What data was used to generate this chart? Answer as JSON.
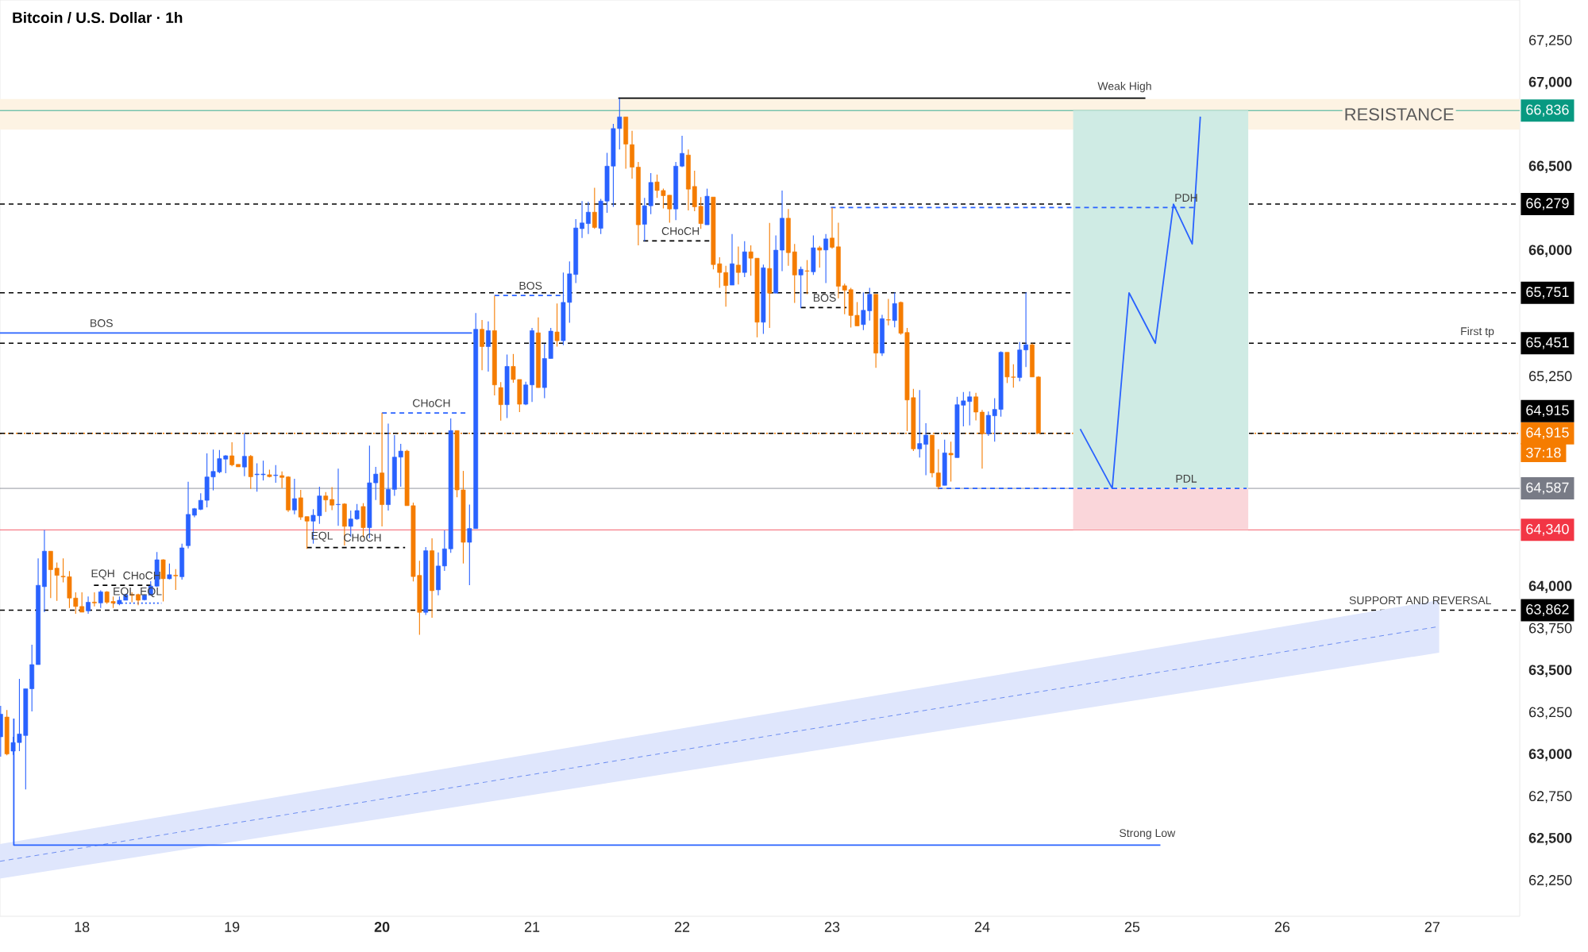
{
  "chart_data": {
    "type": "candlestick",
    "title": "Bitcoin / U.S. Dollar · 1h",
    "x": [
      17.4583,
      17.5,
      17.5417,
      17.5833,
      17.625,
      17.6667,
      17.7083,
      17.75,
      17.7917,
      17.8333,
      17.875,
      17.9167,
      17.9583,
      18,
      18.0417,
      18.0833,
      18.125,
      18.1667,
      18.2083,
      18.25,
      18.2917,
      18.3333,
      18.375,
      18.4167,
      18.4583,
      18.5,
      18.5417,
      18.5833,
      18.625,
      18.6667,
      18.7083,
      18.75,
      18.7917,
      18.8333,
      18.875,
      18.9167,
      18.9583,
      19,
      19.0417,
      19.0833,
      19.125,
      19.1667,
      19.2083,
      19.25,
      19.2917,
      19.3333,
      19.375,
      19.4167,
      19.4583,
      19.5,
      19.5417,
      19.5833,
      19.625,
      19.6667,
      19.7083,
      19.75,
      19.7917,
      19.8333,
      19.875,
      19.9167,
      19.9583,
      20,
      20.0417,
      20.0833,
      20.125,
      20.1667,
      20.2083,
      20.25,
      20.2917,
      20.3333,
      20.375,
      20.4167,
      20.4583,
      20.5,
      20.5417,
      20.5833,
      20.625,
      20.6667,
      20.7083,
      20.75,
      20.7917,
      20.8333,
      20.875,
      20.9167,
      20.9583,
      21,
      21.0417,
      21.0833,
      21.125,
      21.1667,
      21.2083,
      21.25,
      21.2917,
      21.3333,
      21.375,
      21.4167,
      21.4583,
      21.5,
      21.5417,
      21.5833,
      21.625,
      21.6667,
      21.7083,
      21.75,
      21.7917,
      21.8333,
      21.875,
      21.9167,
      21.9583,
      22,
      22.0417,
      22.0833,
      22.125,
      22.1667,
      22.2083,
      22.25,
      22.2917,
      22.3333,
      22.375,
      22.4167,
      22.4583,
      22.5,
      22.5417,
      22.5833,
      22.625,
      22.6667,
      22.7083,
      22.75,
      22.7917,
      22.8333,
      22.875,
      22.9167,
      22.9583,
      23,
      23.0417,
      23.0833,
      23.125,
      23.1667,
      23.2083,
      23.25,
      23.2917,
      23.3333,
      23.375,
      23.4167,
      23.4583,
      23.5,
      23.5417,
      23.5833,
      23.625,
      23.6667,
      23.7083,
      23.75,
      23.7917,
      23.8333,
      23.875,
      23.9167,
      23.9583,
      24,
      24.0417,
      24.0833,
      24.125,
      24.1667,
      24.2083,
      24.25,
      24.2917,
      24.3333,
      24.375
    ],
    "ohlc": [
      [
        63108,
        63293,
        62990,
        63243
      ],
      [
        63226,
        63268,
        62998,
        63006
      ],
      [
        63023,
        63108,
        63000,
        63074
      ],
      [
        63074,
        63453,
        63023,
        63125
      ],
      [
        63116,
        63394,
        62795,
        63394
      ],
      [
        63394,
        63656,
        63259,
        63538
      ],
      [
        63538,
        64170,
        63538,
        64010
      ],
      [
        64002,
        64339,
        63850,
        64213
      ],
      [
        64213,
        64213,
        63934,
        64103
      ],
      [
        64112,
        64145,
        63918,
        64069
      ],
      [
        64064,
        64170,
        64027,
        64060
      ],
      [
        64061,
        64095,
        63875,
        63934
      ],
      [
        63934,
        63968,
        63841,
        63884
      ],
      [
        63884,
        63968,
        63850,
        63850
      ],
      [
        63858,
        63943,
        63841,
        63909
      ],
      [
        63910,
        63968,
        63884,
        63905
      ],
      [
        63905,
        63980,
        63875,
        63971
      ],
      [
        63971,
        63975,
        63900,
        63909
      ],
      [
        63914,
        63943,
        63875,
        63904
      ],
      [
        63900,
        63943,
        63892,
        63921
      ],
      [
        63921,
        63960,
        63921,
        63955
      ],
      [
        63955,
        63968,
        63909,
        63950
      ],
      [
        63955,
        63960,
        63892,
        63921
      ],
      [
        63924,
        63955,
        63920,
        63951
      ],
      [
        63951,
        64035,
        63950,
        64005
      ],
      [
        64005,
        64208,
        64000,
        64162
      ],
      [
        64162,
        64165,
        63914,
        64049
      ],
      [
        64049,
        64140,
        64045,
        64073
      ],
      [
        64070,
        64106,
        63982,
        64066
      ],
      [
        64061,
        64258,
        64044,
        64233
      ],
      [
        64246,
        64626,
        64229,
        64432
      ],
      [
        64427,
        64470,
        64415,
        64466
      ],
      [
        64462,
        64558,
        64457,
        64516
      ],
      [
        64516,
        64795,
        64474,
        64655
      ],
      [
        64655,
        64818,
        64575,
        64688
      ],
      [
        64685,
        64815,
        64677,
        64764
      ],
      [
        64761,
        64785,
        64677,
        64781
      ],
      [
        64781,
        64862,
        64719,
        64727
      ],
      [
        64730,
        64730,
        64715,
        64715
      ],
      [
        64714,
        64913,
        64660,
        64778
      ],
      [
        64778,
        64786,
        64584,
        64656
      ],
      [
        64668,
        64736,
        64567,
        64672
      ],
      [
        64668,
        64752,
        64634,
        64672
      ],
      [
        64668,
        64699,
        64652,
        64657
      ],
      [
        64663,
        64726,
        64620,
        64666
      ],
      [
        64663,
        64688,
        64589,
        64652
      ],
      [
        64655,
        64660,
        64447,
        64458
      ],
      [
        64458,
        64644,
        64432,
        64526
      ],
      [
        64531,
        64578,
        64400,
        64416
      ],
      [
        64419,
        64420,
        64227,
        64392
      ],
      [
        64392,
        64463,
        64258,
        64427
      ],
      [
        64424,
        64597,
        64376,
        64542
      ],
      [
        64542,
        64565,
        64447,
        64518
      ],
      [
        64521,
        64594,
        64458,
        64487
      ],
      [
        64490,
        64704,
        64364,
        64492
      ],
      [
        64494,
        64499,
        64247,
        64361
      ],
      [
        64361,
        64455,
        64298,
        64405
      ],
      [
        64405,
        64494,
        64400,
        64455
      ],
      [
        64479,
        64499,
        64295,
        64353
      ],
      [
        64353,
        64841,
        64290,
        64620
      ],
      [
        64620,
        64715,
        64518,
        64672
      ],
      [
        64679,
        65038,
        64361,
        64490
      ],
      [
        64490,
        64972,
        64455,
        64581
      ],
      [
        64581,
        64904,
        64542,
        64773
      ],
      [
        64773,
        64852,
        64597,
        64809
      ],
      [
        64809,
        64817,
        64484,
        64484
      ],
      [
        64484,
        64502,
        64033,
        64062
      ],
      [
        64069,
        64156,
        63715,
        63849
      ],
      [
        63849,
        64238,
        63833,
        64216
      ],
      [
        64216,
        64290,
        63817,
        63978
      ],
      [
        63983,
        64206,
        63951,
        64125
      ],
      [
        64125,
        64337,
        64096,
        64227
      ],
      [
        64227,
        65003,
        64203,
        64931
      ],
      [
        64931,
        64931,
        64534,
        64578
      ],
      [
        64578,
        64691,
        64140,
        64266
      ],
      [
        64266,
        64490,
        64011,
        64348
      ],
      [
        64348,
        65631,
        64348,
        65534
      ],
      [
        65534,
        65589,
        65290,
        65431
      ],
      [
        65431,
        65581,
        65282,
        65526
      ],
      [
        65526,
        65734,
        65140,
        65203
      ],
      [
        65187,
        65219,
        64990,
        65085
      ],
      [
        65085,
        65384,
        65006,
        65313
      ],
      [
        65313,
        65387,
        65216,
        65235
      ],
      [
        65235,
        65235,
        65041,
        65088
      ],
      [
        65088,
        65222,
        65082,
        65203
      ],
      [
        65203,
        65542,
        65101,
        65526
      ],
      [
        65513,
        65605,
        65187,
        65187
      ],
      [
        65187,
        65447,
        65124,
        65360
      ],
      [
        65360,
        65542,
        65360,
        65523
      ],
      [
        65518,
        65687,
        65431,
        65466
      ],
      [
        65466,
        65872,
        65439,
        65694
      ],
      [
        65694,
        65938,
        65573,
        65864
      ],
      [
        65860,
        66190,
        65809,
        66137
      ],
      [
        66133,
        66297,
        66077,
        66167
      ],
      [
        66163,
        66294,
        66101,
        66231
      ],
      [
        66231,
        66376,
        66132,
        66140
      ],
      [
        66135,
        66310,
        66101,
        66297
      ],
      [
        66297,
        66584,
        66227,
        66505
      ],
      [
        66505,
        66757,
        66263,
        66729
      ],
      [
        66729,
        66908,
        66604,
        66798
      ],
      [
        66798,
        66798,
        66490,
        66636
      ],
      [
        66633,
        66715,
        66431,
        66499
      ],
      [
        66499,
        66530,
        66033,
        66156
      ],
      [
        66159,
        66316,
        66058,
        66269
      ],
      [
        66269,
        66464,
        66219,
        66408
      ],
      [
        66411,
        66455,
        66316,
        66360
      ],
      [
        66360,
        66371,
        66253,
        66329
      ],
      [
        66332,
        66332,
        66168,
        66250
      ],
      [
        66250,
        66530,
        66184,
        66505
      ],
      [
        66505,
        66686,
        66499,
        66581
      ],
      [
        66571,
        66604,
        66242,
        66368
      ],
      [
        66384,
        66478,
        66237,
        66263
      ],
      [
        66266,
        66321,
        66132,
        66163
      ],
      [
        66156,
        66371,
        66156,
        66326
      ],
      [
        66321,
        66321,
        65891,
        65919
      ],
      [
        65924,
        65963,
        65781,
        65872
      ],
      [
        65872,
        65912,
        65668,
        65794
      ],
      [
        65797,
        66101,
        65797,
        65924
      ],
      [
        65916,
        66027,
        65801,
        65872
      ],
      [
        65872,
        66058,
        65844,
        65995
      ],
      [
        65995,
        66033,
        65853,
        65957
      ],
      [
        65957,
        65957,
        65486,
        65576
      ],
      [
        65576,
        65919,
        65507,
        65900
      ],
      [
        65896,
        66167,
        65542,
        65749
      ],
      [
        65749,
        66093,
        65749,
        66005
      ],
      [
        66005,
        66360,
        65880,
        66195
      ],
      [
        66195,
        66250,
        65912,
        65990
      ],
      [
        65995,
        66042,
        65691,
        65857
      ],
      [
        65857,
        65907,
        65660,
        65891
      ],
      [
        65882,
        65946,
        65743,
        65880
      ],
      [
        65876,
        66093,
        65857,
        66019
      ],
      [
        66019,
        66030,
        65901,
        66005
      ],
      [
        66006,
        66101,
        65809,
        66072
      ],
      [
        66077,
        66258,
        66014,
        66022
      ],
      [
        66025,
        66168,
        65718,
        65790
      ],
      [
        65793,
        65805,
        65624,
        65767
      ],
      [
        65770,
        65781,
        65545,
        65616
      ],
      [
        65617,
        65696,
        65554,
        65554
      ],
      [
        65562,
        65754,
        65529,
        65647
      ],
      [
        65644,
        65781,
        65586,
        65742
      ],
      [
        65742,
        65742,
        65305,
        65392
      ],
      [
        65392,
        65620,
        65376,
        65597
      ],
      [
        65591,
        65715,
        65557,
        65589
      ],
      [
        65586,
        65754,
        65546,
        65687
      ],
      [
        65694,
        65699,
        65502,
        65510
      ],
      [
        65515,
        65542,
        64928,
        65113
      ],
      [
        65127,
        65179,
        64809,
        64822
      ],
      [
        64822,
        65172,
        64770,
        64854
      ],
      [
        64849,
        64975,
        64665,
        64904
      ],
      [
        64904,
        64904,
        64652,
        64679
      ],
      [
        64679,
        64820,
        64581,
        64597
      ],
      [
        64605,
        64877,
        64605,
        64798
      ],
      [
        64796,
        64865,
        64628,
        64786
      ],
      [
        64770,
        65132,
        64770,
        65085
      ],
      [
        65082,
        65161,
        64956,
        65108
      ],
      [
        65104,
        65164,
        64962,
        65132
      ],
      [
        65132,
        65156,
        64991,
        65041
      ],
      [
        65041,
        65054,
        64704,
        64912
      ],
      [
        64912,
        65045,
        64899,
        65022
      ],
      [
        65019,
        65124,
        64865,
        65057
      ],
      [
        65057,
        65403,
        65014,
        65397
      ],
      [
        65397,
        65397,
        65214,
        65250
      ],
      [
        65250,
        65326,
        65186,
        65248
      ],
      [
        65247,
        65458,
        65224,
        65411
      ],
      [
        65411,
        65754,
        65309,
        65442
      ],
      [
        65442,
        65450,
        65250,
        65250
      ],
      [
        65250,
        65255,
        64915,
        64915
      ]
    ],
    "series": [
      {
        "type": "line",
        "x": [
          17.454,
          27.046
        ],
        "values": [
          62367,
          63765
        ],
        "lower": [
          62265,
          63609
        ],
        "upper": [
          62470,
          63922
        ],
        "color": "#6f8ff0",
        "line_style": "dashed"
      },
      {
        "type": "bar",
        "x": [
          25.19
        ],
        "values": [
          2249
        ],
        "base": [
          64587
        ],
        "color": "#cfebe4"
      },
      {
        "type": "bar",
        "x": [
          25.19
        ],
        "values": [
          247
        ],
        "base": [
          64340
        ],
        "color": "#fad6da"
      },
      {
        "type": "line",
        "x": [
          17.454,
          20.6
        ],
        "values": [
          65512,
          65512
        ],
        "color": "#2962ff",
        "line_style": "solid"
      },
      {
        "type": "line",
        "x": [
          17.546,
          17.546,
          25.188
        ],
        "values": [
          63217,
          62464,
          62464
        ],
        "color": "#2962ff",
        "line_style": "solid"
      },
      {
        "type": "line",
        "x": [
          21.575,
          25.088
        ],
        "values": [
          66910,
          66910
        ],
        "color": "#000000",
        "line_style": "solid"
      },
      {
        "type": "line",
        "x": [
          20.75,
          21.217
        ],
        "values": [
          65735,
          65735
        ],
        "color": "#2962ff",
        "line_style": "dashed"
      },
      {
        "type": "line",
        "x": [
          20.0,
          20.575
        ],
        "values": [
          65036,
          65036
        ],
        "color": "#2962ff",
        "line_style": "dashed"
      },
      {
        "type": "line",
        "x": [
          19.5,
          20.154
        ],
        "values": [
          64235,
          64235
        ],
        "color": "#000000",
        "line_style": "dashed"
      },
      {
        "type": "line",
        "x": [
          21.742,
          22.183
        ],
        "values": [
          66060,
          66060
        ],
        "color": "#000000",
        "line_style": "dashed"
      },
      {
        "type": "line",
        "x": [
          22.792,
          23.096
        ],
        "values": [
          65663,
          65663
        ],
        "color": "#000000",
        "line_style": "dashed"
      },
      {
        "type": "line",
        "x": [
          22.992,
          25.425
        ],
        "values": [
          66259,
          66259
        ],
        "color": "#2962ff",
        "line_style": "dashed"
      },
      {
        "type": "line",
        "x": [
          23.704,
          25.763
        ],
        "values": [
          64587,
          64587
        ],
        "color": "#2962ff",
        "line_style": "dashed"
      },
      {
        "type": "line",
        "x": [
          18.08,
          18.5
        ],
        "values": [
          64010,
          64010
        ],
        "color": "#000000",
        "line_style": "dashed"
      },
      {
        "type": "line",
        "x": [
          18.21,
          18.53
        ],
        "values": [
          63904,
          63904
        ],
        "color": "#2962ff",
        "line_style": "dotted"
      },
      {
        "type": "line",
        "x": [
          24.654,
          24.867,
          24.979,
          25.154,
          25.275,
          25.4,
          25.454
        ],
        "values": [
          64940,
          64587,
          65751,
          65451,
          66279,
          66042,
          66800
        ],
        "color": "#2962ff",
        "line_style": "solid"
      }
    ],
    "bands": [
      {
        "axis": "y",
        "from": 66723,
        "to": 66904,
        "label": "RESISTANCE",
        "color": "#fdf3e3"
      }
    ],
    "ref_lines": [
      {
        "axis": "y",
        "value": 66836,
        "label": "66,836",
        "color": "#089981",
        "line_style": "solid"
      },
      {
        "axis": "y",
        "value": 66279,
        "label": "66,279",
        "color": "#000000",
        "line_style": "dashed"
      },
      {
        "axis": "y",
        "value": 65751,
        "label": "65,751",
        "color": "#000000",
        "line_style": "dashed"
      },
      {
        "axis": "y",
        "value": 65451,
        "label": "65,451",
        "color": "#000000",
        "line_style": "dashed"
      },
      {
        "axis": "y",
        "value": 64915,
        "label": "64,915",
        "color": "#f57c00",
        "line_style": "dotted"
      },
      {
        "axis": "y",
        "value": 64915,
        "label": "64,915",
        "color": "#000000",
        "line_style": "dashed"
      },
      {
        "axis": "y",
        "value": 64587,
        "label": "64,587",
        "color": "#787b86",
        "line_style": "solid"
      },
      {
        "axis": "y",
        "value": 64340,
        "label": "64,340",
        "color": "#f23645",
        "line_style": "solid"
      },
      {
        "axis": "y",
        "value": 63862,
        "label": "63,862",
        "color": "#000000",
        "line_style": "dashed"
      }
    ],
    "annotations": [
      {
        "text": "BOS",
        "x": 18.13,
        "y": 65512
      },
      {
        "text": "BOS",
        "x": 20.99,
        "y": 65735
      },
      {
        "text": "CHoCH",
        "x": 20.33,
        "y": 65036
      },
      {
        "text": "EQH",
        "x": 18.14,
        "y": 64010
      },
      {
        "text": "CHoCH",
        "x": 18.4,
        "y": 64010
      },
      {
        "text": "EQL",
        "x": 18.28,
        "y": 63904
      },
      {
        "text": "EQL",
        "x": 18.46,
        "y": 63904
      },
      {
        "text": "EQL",
        "x": 19.6,
        "y": 64235
      },
      {
        "text": "CHoCH",
        "x": 19.87,
        "y": 64235
      },
      {
        "text": "CHoCH",
        "x": 21.99,
        "y": 66060
      },
      {
        "text": "BOS",
        "x": 22.95,
        "y": 65663
      },
      {
        "text": "Weak High",
        "x": 24.95,
        "y": 66910
      },
      {
        "text": "Strong Low",
        "x": 25.1,
        "y": 62464
      },
      {
        "text": "PDH",
        "x": 25.36,
        "y": 66259
      },
      {
        "text": "PDL",
        "x": 25.36,
        "y": 64587
      },
      {
        "text": "First tp",
        "x": 27.3,
        "y": 65451
      },
      {
        "text": "SUPPORT AND REVERSAL",
        "x": 26.92,
        "y": 63862
      },
      {
        "text": "37:18",
        "x": 27.583,
        "y": 64915
      }
    ],
    "xlim": [
      17.454,
      27.583
    ],
    "xticks": [
      18,
      19,
      {
        "value": 20,
        "label": "**20**"
      },
      21,
      22,
      23,
      24,
      25,
      26,
      27
    ],
    "ylim": [
      62040,
      67494
    ],
    "yticks": [
      {
        "value": 62250,
        "label": "62,250"
      },
      {
        "value": 62500,
        "label": "**62,500**"
      },
      {
        "value": 62750,
        "label": "62,750"
      },
      {
        "value": 63000,
        "label": "**63,000**"
      },
      {
        "value": 63250,
        "label": "63,250"
      },
      {
        "value": 63500,
        "label": "**63,500**"
      },
      {
        "value": 63750,
        "label": "63,750"
      },
      {
        "value": 64000,
        "label": "**64,000**"
      },
      {
        "value": 65250,
        "label": "65,250"
      },
      {
        "value": 66000,
        "label": "**66,000**"
      },
      {
        "value": 66500,
        "label": "**66,500**"
      },
      {
        "value": 67000,
        "label": "**67,000**"
      },
      {
        "value": 67250,
        "label": "67,250"
      }
    ]
  }
}
